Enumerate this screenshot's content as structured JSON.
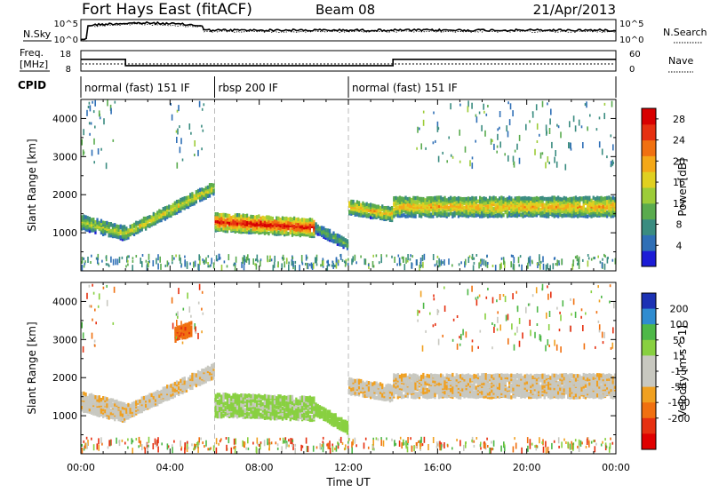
{
  "header": {
    "station": "Fort Hays East (fitACF)",
    "beam": "Beam 08",
    "date": "21/Apr/2013"
  },
  "strip_labels": {
    "nsky": "N.Sky",
    "nsearch": "N.Search",
    "freq_line1": "Freq.",
    "freq_line2": "[MHz]",
    "nave": "Nave",
    "cpid": "CPID"
  },
  "strip_ticks": {
    "noise_top": "10^5",
    "noise_bottom": "10^0",
    "freq_left": [
      "18",
      "8"
    ],
    "nave_right": [
      "60",
      "0"
    ]
  },
  "cpid_segments": [
    {
      "label": "normal (fast) 151 IF",
      "start_hour": 0,
      "end_hour": 6
    },
    {
      "label": "rbsp 200 IF",
      "start_hour": 6,
      "end_hour": 12
    },
    {
      "label": "normal (fast) 151 IF",
      "start_hour": 12,
      "end_hour": 24
    }
  ],
  "chart_data": [
    {
      "type": "heatmap",
      "title": "",
      "xlabel": "Time UT",
      "ylabel": "Slant Range [km]",
      "xlim": [
        0,
        24
      ],
      "ylim": [
        0,
        4500
      ],
      "x_ticks": [
        "00:00",
        "04:00",
        "08:00",
        "12:00",
        "16:00",
        "20:00",
        "00:00"
      ],
      "y_ticks": [
        1000,
        2000,
        3000,
        4000
      ],
      "colorbar": {
        "label": "Power [dB]",
        "ticks": [
          4,
          8,
          12,
          16,
          20,
          24,
          28
        ],
        "range": [
          0,
          30
        ],
        "colors": [
          "#1c1cd6",
          "#2f6fb6",
          "#3a8c80",
          "#5aab4e",
          "#9ccc38",
          "#e0d020",
          "#f4a818",
          "#f07010",
          "#e63010",
          "#d80000"
        ]
      },
      "echo_bands": [
        {
          "t_start": 0.0,
          "t_end": 2.0,
          "range_start": 1300,
          "range_end": 1000,
          "width": 350,
          "power": 14
        },
        {
          "t_start": 2.0,
          "t_end": 6.0,
          "range_start": 1000,
          "range_end": 2200,
          "width": 300,
          "power": 16
        },
        {
          "t_start": 6.0,
          "t_end": 10.5,
          "range_start": 1300,
          "range_end": 1150,
          "width": 450,
          "power": 26
        },
        {
          "t_start": 10.5,
          "t_end": 12.0,
          "range_start": 1150,
          "range_end": 700,
          "width": 250,
          "power": 10
        },
        {
          "t_start": 12.0,
          "t_end": 14.0,
          "range_start": 1700,
          "range_end": 1500,
          "width": 350,
          "power": 18
        },
        {
          "t_start": 14.0,
          "t_end": 24.0,
          "range_start": 1700,
          "range_end": 1700,
          "width": 500,
          "power": 18
        }
      ]
    },
    {
      "type": "heatmap",
      "title": "",
      "xlabel": "Time UT",
      "ylabel": "Slant Range [km]",
      "xlim": [
        0,
        24
      ],
      "ylim": [
        0,
        4500
      ],
      "x_ticks": [
        "00:00",
        "04:00",
        "08:00",
        "12:00",
        "16:00",
        "20:00",
        "00:00"
      ],
      "y_ticks": [
        1000,
        2000,
        3000,
        4000
      ],
      "colorbar": {
        "label": "Velocity [m s^-1]",
        "ticks": [
          "200",
          "100",
          "50",
          "15",
          "-15",
          "-50",
          "-100",
          "-200"
        ],
        "colors": [
          "#1c32b4",
          "#2f8cd0",
          "#4eb848",
          "#88d040",
          "#c8c8c0",
          "#c8c8c0",
          "#f0a020",
          "#f07010",
          "#e63010",
          "#e00000"
        ]
      },
      "echo_bands": [
        {
          "t_start": 0.0,
          "t_end": 2.0,
          "range_start": 1400,
          "range_end": 1100,
          "width": 500,
          "velocity": 0
        },
        {
          "t_start": 2.0,
          "t_end": 6.0,
          "range_start": 1100,
          "range_end": 2200,
          "width": 350,
          "velocity": 0
        },
        {
          "t_start": 4.2,
          "t_end": 5.0,
          "range_start": 3150,
          "range_end": 3300,
          "width": 350,
          "velocity": -60
        },
        {
          "t_start": 6.0,
          "t_end": 10.5,
          "range_start": 1300,
          "range_end": 1200,
          "width": 600,
          "velocity": 40
        },
        {
          "t_start": 10.5,
          "t_end": 12.0,
          "range_start": 1200,
          "range_end": 700,
          "width": 300,
          "velocity": 50
        },
        {
          "t_start": 12.0,
          "t_end": 14.0,
          "range_start": 1800,
          "range_end": 1600,
          "width": 400,
          "velocity": 0
        },
        {
          "t_start": 14.0,
          "t_end": 24.0,
          "range_start": 1800,
          "range_end": 1800,
          "width": 600,
          "velocity": 0
        }
      ]
    }
  ]
}
